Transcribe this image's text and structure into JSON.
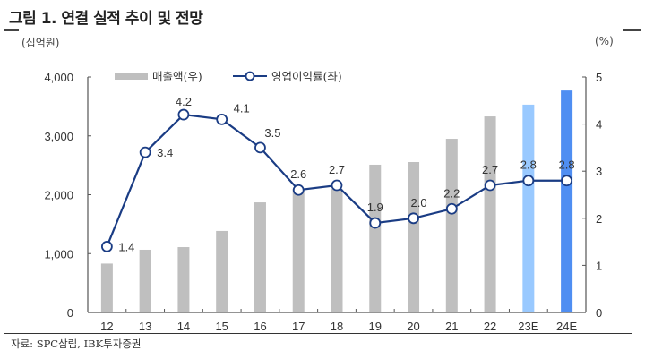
{
  "header": {
    "title": "그림 1. 연결 실적 추이 및 전망",
    "unit_left": "(십억원)",
    "unit_right": "(%)"
  },
  "footer": {
    "source": "자료: SPC삼립, IBK투자증권"
  },
  "colors": {
    "bar_actual": "#bfbfbf",
    "bar_2023E": "#99c9ff",
    "bar_2024E": "#4f8ef2",
    "line": "#1a3c84",
    "axis": "#555555"
  },
  "chart_data": {
    "type": "bar+line",
    "title": "그림 1. 연결 실적 추이 및 전망",
    "categories": [
      "12",
      "13",
      "14",
      "15",
      "16",
      "17",
      "18",
      "19",
      "20",
      "21",
      "22",
      "23E",
      "24E"
    ],
    "series": [
      {
        "name": "매출액(우)",
        "type": "bar",
        "axis": "left",
        "values": [
          830,
          1065,
          1110,
          1385,
          1870,
          2100,
          2100,
          2510,
          2555,
          2950,
          3330,
          3530,
          3770
        ]
      },
      {
        "name": "영업이익률(좌)",
        "type": "line",
        "axis": "right",
        "values": [
          1.4,
          3.4,
          4.2,
          4.1,
          3.5,
          2.6,
          2.7,
          1.9,
          2.0,
          2.2,
          2.7,
          2.8,
          2.8
        ],
        "labels": [
          "1.4",
          "3.4",
          "4.2",
          "4.1",
          "3.5",
          "2.6",
          "2.7",
          "1.9",
          "2.0",
          "2.2",
          "2.7",
          "2.8",
          "2.8"
        ]
      }
    ],
    "y_left": {
      "label": "(십억원)",
      "lim": [
        0,
        4000
      ],
      "ticks": [
        0,
        1000,
        2000,
        3000,
        4000
      ],
      "tick_labels": [
        "0",
        "1,000",
        "2,000",
        "3,000",
        "4,000"
      ]
    },
    "y_right": {
      "label": "(%)",
      "lim": [
        0,
        5
      ],
      "ticks": [
        0,
        1,
        2,
        3,
        4,
        5
      ],
      "tick_labels": [
        "0",
        "1",
        "2",
        "3",
        "4",
        "5"
      ]
    },
    "legend": {
      "placement": "top-center",
      "entries": [
        "매출액(우)",
        "영업이익률(좌)"
      ]
    },
    "grid": false
  }
}
